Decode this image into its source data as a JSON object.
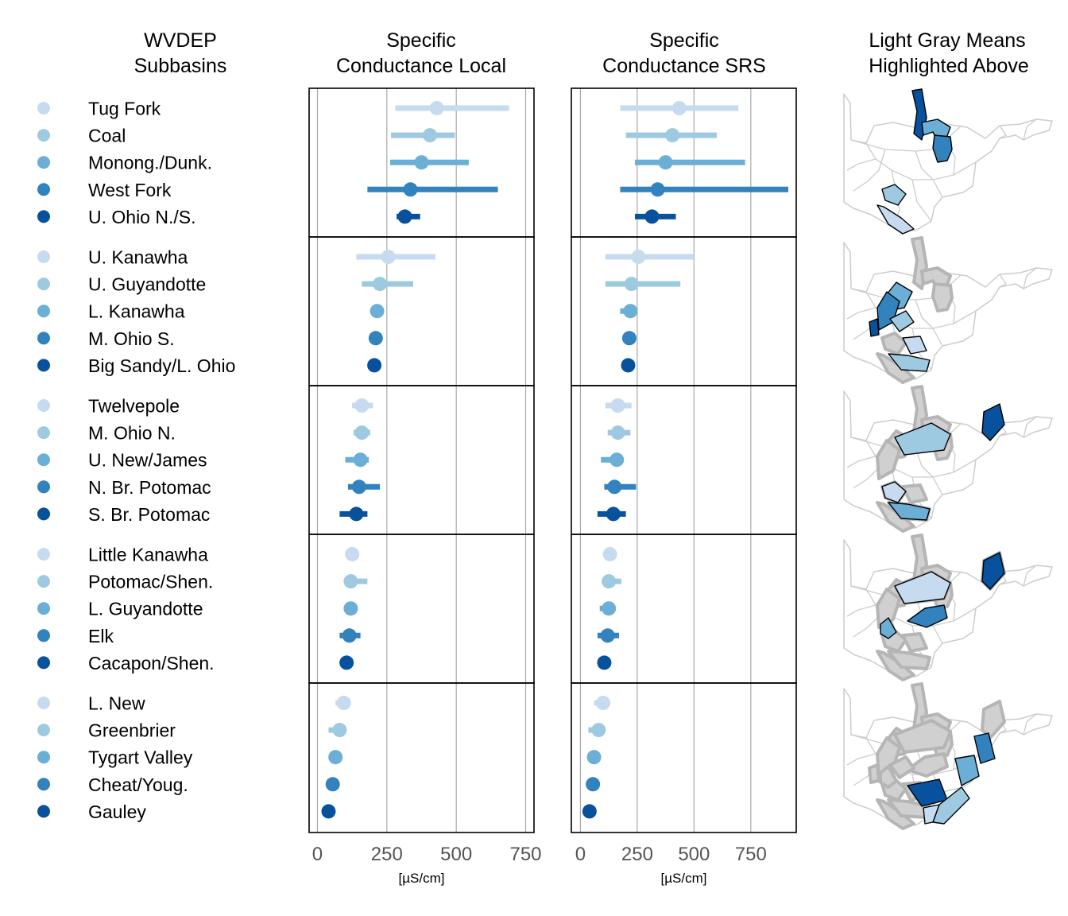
{
  "headers": {
    "subbasins": [
      "WVDEP",
      "Subbasins"
    ],
    "local": [
      "Specific",
      "Conductance Local"
    ],
    "srs": [
      "Specific",
      "Conductance SRS"
    ],
    "maps": [
      "Light Gray Means",
      "Highlighted Above"
    ]
  },
  "colors": [
    "#c6dbef",
    "#9ecae1",
    "#6baed6",
    "#3182bd",
    "#08519c"
  ],
  "map_colors": {
    "highlight_gray": "#d0d0d0",
    "highlight_gray_stroke": "#b5b5b5",
    "outline": "#cccccc"
  },
  "chart_data": [
    {
      "type": "dot-and-interval",
      "title": "Specific Conductance Local",
      "xlabel": "[µS/cm]",
      "xlim": [
        -30,
        780
      ],
      "xticks": [
        0,
        250,
        500,
        750
      ],
      "xtick_labels": [
        "0",
        "250",
        "500",
        "750"
      ],
      "grid": true,
      "groups": [
        [
          {
            "name": "Tug Fork",
            "value": 430,
            "low": 280,
            "high": 690
          },
          {
            "name": "Coal",
            "value": 405,
            "low": 265,
            "high": 495
          },
          {
            "name": "Monong./Dunk.",
            "value": 375,
            "low": 262,
            "high": 545
          },
          {
            "name": "West Fork",
            "value": 335,
            "low": 180,
            "high": 650
          },
          {
            "name": "U. Ohio N./S.",
            "value": 315,
            "low": 285,
            "high": 370
          }
        ],
        [
          {
            "name": "U. Kanawha",
            "value": 255,
            "low": 140,
            "high": 425
          },
          {
            "name": "U. Guyandotte",
            "value": 225,
            "low": 160,
            "high": 345
          },
          {
            "name": "L. Kanawha",
            "value": 215,
            "low": 205,
            "high": 230
          },
          {
            "name": "M. Ohio S.",
            "value": 210,
            "low": 200,
            "high": 225
          },
          {
            "name": "Big Sandy/L. Ohio",
            "value": 205,
            "low": 195,
            "high": 218
          }
        ],
        [
          {
            "name": "Twelvepole",
            "value": 160,
            "low": 125,
            "high": 200
          },
          {
            "name": "M. Ohio N.",
            "value": 160,
            "low": 130,
            "high": 190
          },
          {
            "name": "U. New/James",
            "value": 155,
            "low": 100,
            "high": 185
          },
          {
            "name": "N. Br. Potomac",
            "value": 150,
            "low": 110,
            "high": 225
          },
          {
            "name": "S. Br. Potomac",
            "value": 140,
            "low": 80,
            "high": 180
          }
        ],
        [
          {
            "name": "Little Kanawha",
            "value": 125,
            "low": 115,
            "high": 140
          },
          {
            "name": "Potomac/Shen.",
            "value": 120,
            "low": 110,
            "high": 180
          },
          {
            "name": "L. Guyandotte",
            "value": 120,
            "low": 105,
            "high": 135
          },
          {
            "name": "Elk",
            "value": 115,
            "low": 80,
            "high": 155
          },
          {
            "name": "Cacapon/Shen.",
            "value": 105,
            "low": 95,
            "high": 115
          }
        ],
        [
          {
            "name": "L. New",
            "value": 95,
            "low": 65,
            "high": 115
          },
          {
            "name": "Greenbrier",
            "value": 80,
            "low": 40,
            "high": 100
          },
          {
            "name": "Tygart Valley",
            "value": 65,
            "low": 55,
            "high": 80
          },
          {
            "name": "Cheat/Youg.",
            "value": 55,
            "low": 45,
            "high": 65
          },
          {
            "name": "Gauley",
            "value": 40,
            "low": 30,
            "high": 50
          }
        ]
      ]
    },
    {
      "type": "dot-and-interval",
      "title": "Specific Conductance SRS",
      "xlabel": "[µS/cm]",
      "xlim": [
        -40,
        950
      ],
      "xticks": [
        0,
        250,
        500,
        750
      ],
      "xtick_labels": [
        "0",
        "250",
        "500",
        "750"
      ],
      "grid": true,
      "groups": [
        [
          {
            "name": "Tug Fork",
            "value": 435,
            "low": 175,
            "high": 695
          },
          {
            "name": "Coal",
            "value": 405,
            "low": 200,
            "high": 600
          },
          {
            "name": "Monong./Dunk.",
            "value": 375,
            "low": 240,
            "high": 725
          },
          {
            "name": "West Fork",
            "value": 340,
            "low": 175,
            "high": 915
          },
          {
            "name": "U. Ohio N./S.",
            "value": 315,
            "low": 240,
            "high": 420
          }
        ],
        [
          {
            "name": "U. Kanawha",
            "value": 255,
            "low": 110,
            "high": 500
          },
          {
            "name": "U. Guyandotte",
            "value": 225,
            "low": 110,
            "high": 440
          },
          {
            "name": "L. Kanawha",
            "value": 220,
            "low": 175,
            "high": 240
          },
          {
            "name": "M. Ohio S.",
            "value": 215,
            "low": 200,
            "high": 232
          },
          {
            "name": "Big Sandy/L. Ohio",
            "value": 210,
            "low": 195,
            "high": 225
          }
        ],
        [
          {
            "name": "Twelvepole",
            "value": 165,
            "low": 110,
            "high": 225
          },
          {
            "name": "M. Ohio N.",
            "value": 165,
            "low": 120,
            "high": 220
          },
          {
            "name": "U. New/James",
            "value": 160,
            "low": 90,
            "high": 190
          },
          {
            "name": "N. Br. Potomac",
            "value": 150,
            "low": 105,
            "high": 245
          },
          {
            "name": "S. Br. Potomac",
            "value": 145,
            "low": 75,
            "high": 200
          }
        ],
        [
          {
            "name": "Little Kanawha",
            "value": 130,
            "low": 115,
            "high": 145
          },
          {
            "name": "Potomac/Shen.",
            "value": 125,
            "low": 110,
            "high": 180
          },
          {
            "name": "L. Guyandotte",
            "value": 125,
            "low": 85,
            "high": 145
          },
          {
            "name": "Elk",
            "value": 120,
            "low": 75,
            "high": 170
          },
          {
            "name": "Cacapon/Shen.",
            "value": 105,
            "low": 90,
            "high": 120
          }
        ],
        [
          {
            "name": "L. New",
            "value": 100,
            "low": 60,
            "high": 120
          },
          {
            "name": "Greenbrier",
            "value": 80,
            "low": 35,
            "high": 100
          },
          {
            "name": "Tygart Valley",
            "value": 60,
            "low": 45,
            "high": 75
          },
          {
            "name": "Cheat/Youg.",
            "value": 55,
            "low": 40,
            "high": 65
          },
          {
            "name": "Gauley",
            "value": 40,
            "low": 25,
            "high": 55
          }
        ]
      ]
    }
  ]
}
